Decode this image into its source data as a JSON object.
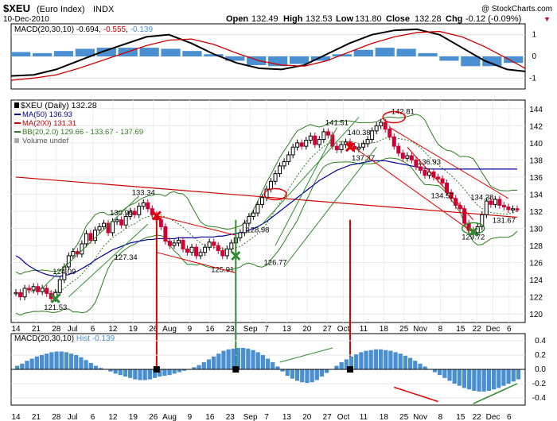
{
  "header": {
    "symbol": "$XEU",
    "name": "(Euro Index)",
    "exchange": "INDX",
    "date": "10-Dec-2010",
    "ohlc": {
      "open_label": "Open",
      "open": "132.49",
      "high_label": "High",
      "high": "132.53",
      "low_label": "Low",
      "low": "131.80",
      "close_label": "Close",
      "close": "132.28",
      "chg_label": "Chg",
      "chg": "-0.12 (-0.09%)"
    },
    "brand": "@ StockCharts.com"
  },
  "colors": {
    "up": "#000000",
    "down": "#cc0033",
    "ma50": "#000099",
    "ma200": "#cc0000",
    "bb": "#2e7d1e",
    "hist": "#4a8fd0",
    "macd": "#000000",
    "signal": "#cc0000",
    "annot_red": "#e00000",
    "annot_green": "#2e8b2e"
  },
  "chart_data": [
    {
      "type": "line",
      "title": "MACD(20,30,10) -0.694, -0.555, -0.139",
      "legend_macd": "MACD(20,30,10)",
      "legend_vals": [
        "-0.694",
        "-0.555",
        "-0.139"
      ],
      "ylim": [
        -1.5,
        1.5
      ],
      "yticks": [
        1,
        0,
        -1
      ],
      "series": [
        {
          "name": "MACD",
          "x": [
            0,
            5,
            10,
            15,
            20,
            25,
            30,
            35,
            40,
            45,
            50,
            55,
            60,
            65,
            70,
            75,
            80,
            85,
            90,
            95,
            100,
            105,
            110,
            114
          ],
          "values": [
            -0.9,
            -0.85,
            -0.6,
            -0.2,
            0.2,
            0.55,
            0.9,
            1.0,
            0.6,
            0.1,
            -0.3,
            -0.55,
            -0.6,
            -0.4,
            0.1,
            0.6,
            1.0,
            1.2,
            1.25,
            1.0,
            0.4,
            -0.2,
            -0.6,
            -0.69
          ]
        },
        {
          "name": "Signal",
          "x": [
            0,
            5,
            10,
            15,
            20,
            25,
            30,
            35,
            40,
            45,
            50,
            55,
            60,
            65,
            70,
            75,
            80,
            85,
            90,
            95,
            100,
            105,
            110,
            114
          ],
          "values": [
            -1.1,
            -1.0,
            -0.85,
            -0.55,
            -0.2,
            0.15,
            0.5,
            0.75,
            0.8,
            0.55,
            0.15,
            -0.2,
            -0.4,
            -0.45,
            -0.2,
            0.2,
            0.6,
            0.9,
            1.1,
            1.15,
            0.9,
            0.45,
            -0.1,
            -0.55
          ]
        }
      ],
      "histogram": [
        0.2,
        0.15,
        0.25,
        0.35,
        0.4,
        0.4,
        0.4,
        0.35,
        0.25,
        0.1,
        -0.2,
        -0.4,
        -0.45,
        -0.35,
        -0.2,
        0.1,
        0.3,
        0.4,
        0.35,
        0.15,
        -0.2,
        -0.45,
        -0.45,
        -0.3
      ]
    },
    {
      "type": "line",
      "title": "$XEU (Daily) 132.28",
      "legend": [
        {
          "label": "$XEU (Daily) 132.28",
          "color": "#000000"
        },
        {
          "label": "MA(50) 136.93",
          "color": "#000099"
        },
        {
          "label": "MA(200) 131.31",
          "color": "#cc0000"
        },
        {
          "label": "BB(20,2.0) 129.66 - 133.67 - 137.69",
          "color": "#2e7d1e"
        },
        {
          "label": "Volume undef",
          "color": "#888888"
        }
      ],
      "ylim": [
        119,
        145
      ],
      "yticks": [
        120,
        122,
        124,
        126,
        128,
        130,
        132,
        134,
        136,
        138,
        140,
        142,
        144
      ],
      "xlim": [
        0,
        115
      ],
      "x_ticks": [
        {
          "x": 0,
          "label": "14"
        },
        {
          "x": 5,
          "label": "21"
        },
        {
          "x": 10,
          "label": "28"
        },
        {
          "x": 14,
          "label": "Jul"
        },
        {
          "x": 19,
          "label": "6"
        },
        {
          "x": 24,
          "label": "12"
        },
        {
          "x": 29,
          "label": "19"
        },
        {
          "x": 34,
          "label": "26"
        },
        {
          "x": 38,
          "label": "Aug"
        },
        {
          "x": 43,
          "label": "9"
        },
        {
          "x": 48,
          "label": "16"
        },
        {
          "x": 53,
          "label": "23"
        },
        {
          "x": 58,
          "label": "Sep"
        },
        {
          "x": 62,
          "label": "7"
        },
        {
          "x": 67,
          "label": "13"
        },
        {
          "x": 72,
          "label": "20"
        },
        {
          "x": 77,
          "label": "27"
        },
        {
          "x": 81,
          "label": "Oct"
        },
        {
          "x": 86,
          "label": "11"
        },
        {
          "x": 91,
          "label": "18"
        },
        {
          "x": 96,
          "label": "25"
        },
        {
          "x": 100,
          "label": "Nov"
        },
        {
          "x": 105,
          "label": "8"
        },
        {
          "x": 110,
          "label": "15"
        },
        {
          "x": 114,
          "label": "22"
        },
        {
          "x": 118,
          "label": "Dec"
        },
        {
          "x": 122,
          "label": "6"
        }
      ],
      "close": [
        122.5,
        122.0,
        123.0,
        122.8,
        123.2,
        122.6,
        123.0,
        122.4,
        121.8,
        122.5,
        124.0,
        125.5,
        126.8,
        127.3,
        127.0,
        128.2,
        129.4,
        128.6,
        129.8,
        130.2,
        130.6,
        129.5,
        130.8,
        131.0,
        130.4,
        131.4,
        132.0,
        131.6,
        132.6,
        133.0,
        132.3,
        131.6,
        131.0,
        130.2,
        128.5,
        128.0,
        128.3,
        128.6,
        127.6,
        127.2,
        127.8,
        126.8,
        127.2,
        127.8,
        128.4,
        128.0,
        127.4,
        126.8,
        127.6,
        128.3,
        128.9,
        129.5,
        130.6,
        131.4,
        131.8,
        132.8,
        133.6,
        134.6,
        135.5,
        136.4,
        137.3,
        137.8,
        138.6,
        139.5,
        140.0,
        139.6,
        140.3,
        140.8,
        139.8,
        140.4,
        141.3,
        140.9,
        139.6,
        139.2,
        139.8,
        140.1,
        139.6,
        139.3,
        139.5,
        139.9,
        140.4,
        141.4,
        142.0,
        142.4,
        141.6,
        140.7,
        139.6,
        138.8,
        138.2,
        138.5,
        138.0,
        137.2,
        136.8,
        136.2,
        136.6,
        136.0,
        135.8,
        135.3,
        134.2,
        133.5,
        132.7,
        132.3,
        130.6,
        129.8,
        129.5,
        130.2,
        131.6,
        133.2,
        132.8,
        133.4,
        132.7,
        132.5,
        132.2,
        132.3,
        132.28
      ],
      "ma50": [
        126.8,
        126.5,
        126.0,
        125.6,
        125.3,
        125.0,
        124.8,
        124.6,
        124.5,
        124.4,
        124.4,
        124.5,
        124.6,
        124.8,
        125.0,
        125.3,
        125.6,
        125.9,
        126.3,
        126.6,
        126.9,
        127.2,
        127.5,
        127.7,
        127.9,
        128.1,
        128.3,
        128.4,
        128.5,
        128.6,
        128.7,
        128.7,
        128.8,
        128.8,
        128.8,
        128.8,
        128.8,
        128.9,
        128.9,
        128.9,
        128.9,
        128.9,
        129.0,
        129.0,
        129.0,
        129.0,
        129.1,
        129.1,
        129.2,
        129.3,
        129.4,
        129.5,
        129.6,
        129.8,
        130.0,
        130.2,
        130.5,
        130.8,
        131.2,
        131.6,
        132.0,
        132.4,
        132.8,
        133.2,
        133.6,
        134.0,
        134.4,
        134.8,
        135.2,
        135.6,
        135.9,
        136.2,
        136.5,
        136.8,
        137.0,
        137.2,
        137.4,
        137.5,
        137.6,
        137.7,
        137.8,
        137.9,
        137.9,
        137.9,
        137.9,
        137.8,
        137.7,
        137.6,
        137.5,
        137.4,
        137.3,
        137.2,
        137.1,
        137.0,
        136.95,
        136.93,
        136.93,
        136.93,
        136.93,
        136.93,
        136.93,
        136.93,
        136.93,
        136.93,
        136.93,
        136.93,
        136.93,
        136.93,
        136.93,
        136.93,
        136.93,
        136.93,
        136.93,
        136.93,
        136.93
      ],
      "ma200_x": [
        0,
        115
      ],
      "ma200": [
        136.0,
        131.31
      ],
      "bb_mid_label": "133.67",
      "annotations": [
        {
          "x": 9,
          "y": 121.53,
          "label": "121.53"
        },
        {
          "x": 11,
          "y": 124.09,
          "label": "124.09"
        },
        {
          "x": 24,
          "y": 130.96,
          "label": "130.96"
        },
        {
          "x": 29,
          "y": 133.34,
          "label": "133.34"
        },
        {
          "x": 25,
          "y": 127.34,
          "label": "127.34"
        },
        {
          "x": 47,
          "y": 125.91,
          "label": "125.91"
        },
        {
          "x": 55,
          "y": 128.98,
          "label": "128.98"
        },
        {
          "x": 59,
          "y": 126.77,
          "label": "126.77"
        },
        {
          "x": 73,
          "y": 141.51,
          "label": "141.51"
        },
        {
          "x": 78,
          "y": 140.38,
          "label": "140.38"
        },
        {
          "x": 79,
          "y": 137.37,
          "label": "137.37"
        },
        {
          "x": 88,
          "y": 142.81,
          "label": "142.81"
        },
        {
          "x": 94,
          "y": 136.93,
          "label": "136.93"
        },
        {
          "x": 97,
          "y": 134.57,
          "label": "134.57"
        },
        {
          "x": 106,
          "y": 134.38,
          "label": "134.38"
        },
        {
          "x": 104,
          "y": 129.72,
          "label": "129.72"
        },
        {
          "x": 111,
          "y": 131.67,
          "label": "131.67"
        }
      ],
      "y_right_labels": [
        "144",
        "142",
        "140",
        "138",
        "136",
        "134",
        "132",
        "130",
        "128",
        "126",
        "124",
        "122",
        "120"
      ]
    },
    {
      "type": "bar",
      "title": "MACD(20,30,10) Hist -0.139",
      "legend_macd": "MACD(20,30,10)",
      "legend_hist": "Hist -0.139",
      "ylim": [
        -0.5,
        0.5
      ],
      "yticks": [
        "0.4",
        "0.2",
        "0.0",
        "-0.2",
        "-0.4"
      ],
      "values": [
        0.05,
        0.08,
        0.12,
        0.15,
        0.18,
        0.2,
        0.22,
        0.24,
        0.25,
        0.25,
        0.24,
        0.22,
        0.2,
        0.17,
        0.13,
        0.09,
        0.05,
        0.02,
        0.0,
        -0.03,
        -0.06,
        -0.08,
        -0.1,
        -0.12,
        -0.14,
        -0.15,
        -0.15,
        -0.14,
        -0.12,
        -0.1,
        -0.09,
        -0.08,
        -0.06,
        -0.04,
        -0.02,
        0.0,
        0.03,
        0.06,
        0.1,
        0.14,
        0.18,
        0.22,
        0.26,
        0.28,
        0.29,
        0.3,
        0.3,
        0.29,
        0.27,
        0.24,
        0.2,
        0.15,
        0.1,
        0.04,
        -0.03,
        -0.09,
        -0.13,
        -0.16,
        -0.18,
        -0.19,
        -0.18,
        -0.15,
        -0.1,
        -0.05,
        0.0,
        0.05,
        0.1,
        0.14,
        0.18,
        0.21,
        0.24,
        0.26,
        0.27,
        0.28,
        0.28,
        0.27,
        0.26,
        0.24,
        0.22,
        0.19,
        0.16,
        0.12,
        0.08,
        0.04,
        0.0,
        -0.04,
        -0.08,
        -0.12,
        -0.16,
        -0.2,
        -0.23,
        -0.26,
        -0.28,
        -0.3,
        -0.31,
        -0.31,
        -0.3,
        -0.28,
        -0.26,
        -0.23,
        -0.2,
        -0.17,
        -0.14
      ]
    }
  ]
}
